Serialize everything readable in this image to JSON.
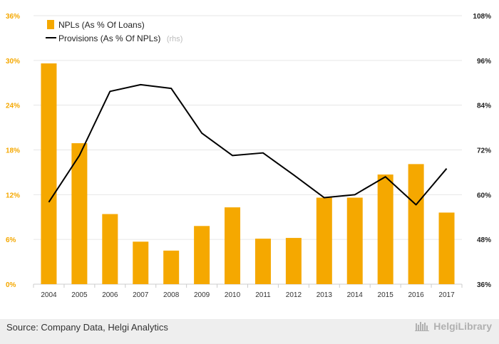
{
  "chart_data": {
    "type": "bar+line",
    "categories": [
      "2004",
      "2005",
      "2006",
      "2007",
      "2008",
      "2009",
      "2010",
      "2011",
      "2012",
      "2013",
      "2014",
      "2015",
      "2016",
      "2017"
    ],
    "series": [
      {
        "name": "NPLs (As % Of Loans)",
        "type": "bar",
        "axis": "left",
        "color": "#f5a800",
        "values": [
          29.6,
          18.9,
          9.4,
          5.7,
          4.5,
          7.8,
          10.3,
          6.1,
          6.2,
          11.6,
          11.6,
          14.7,
          16.1,
          9.6
        ]
      },
      {
        "name": "Provisions (As % Of NPLs)",
        "name_note": "(rhs)",
        "type": "line",
        "axis": "right",
        "color": "#000000",
        "values": [
          58.0,
          70.5,
          87.7,
          89.5,
          88.5,
          76.5,
          70.5,
          71.2,
          65.3,
          59.2,
          60.0,
          64.8,
          57.3,
          67.0
        ]
      }
    ],
    "y_left": {
      "ticks": [
        "0%",
        "6%",
        "12%",
        "18%",
        "24%",
        "30%",
        "36%"
      ],
      "range": [
        0,
        36
      ]
    },
    "y_right": {
      "ticks": [
        "36%",
        "48%",
        "60%",
        "72%",
        "84%",
        "96%",
        "108%"
      ],
      "range": [
        36,
        108
      ]
    },
    "grid": "horizontal",
    "legend": "top-left"
  },
  "footer": {
    "source": "Source: Company Data, Helgi Analytics",
    "brand": "HelgiLibrary"
  }
}
